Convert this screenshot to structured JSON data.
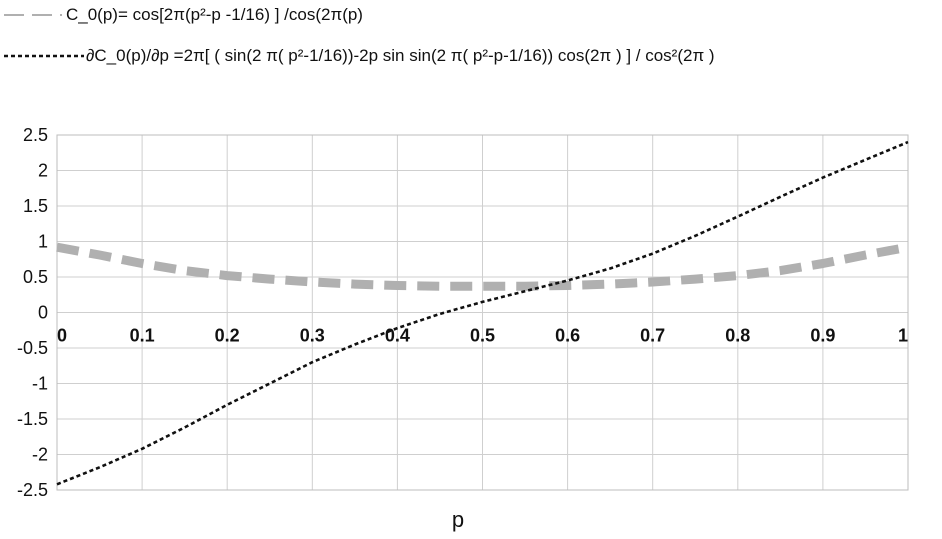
{
  "chart_data": {
    "type": "line",
    "title": "",
    "xlabel": "p",
    "ylabel": "",
    "xlim": [
      0,
      1
    ],
    "ylim": [
      -2.5,
      2.5
    ],
    "x_ticks": [
      "0",
      "0.1",
      "0.2",
      "0.3",
      "0.4",
      "0.5",
      "0.6",
      "0.7",
      "0.8",
      "0.9",
      "1"
    ],
    "y_ticks": [
      "2.5",
      "2",
      "1.5",
      "1",
      "0.5",
      "0",
      "-0.5",
      "-1",
      "-1.5",
      "-2",
      "-2.5"
    ],
    "grid": true,
    "legend_position": "top",
    "series": [
      {
        "name": "C_0(p)= cos[2π(p²-p -1/16) ] /cos(2π(p)",
        "color": "#b0b0b0",
        "style": "thick-dashed",
        "x": [
          0,
          0.05,
          0.1,
          0.15,
          0.2,
          0.25,
          0.3,
          0.35,
          0.4,
          0.45,
          0.5,
          0.55,
          0.6,
          0.65,
          0.7,
          0.75,
          0.8,
          0.85,
          0.9,
          0.95,
          1
        ],
        "y": [
          0.92,
          0.81,
          0.69,
          0.59,
          0.52,
          0.47,
          0.43,
          0.4,
          0.38,
          0.37,
          0.37,
          0.37,
          0.38,
          0.4,
          0.43,
          0.47,
          0.52,
          0.59,
          0.69,
          0.81,
          0.92
        ]
      },
      {
        "name": "∂C_0(p)/∂p =2π[ ( sin(2 π( p²-1/16))-2p sin sin(2 π( p²-p-1/16)) cos(2π )     ] / cos²(2π )",
        "color": "#111111",
        "style": "dotted",
        "x": [
          0,
          0.05,
          0.1,
          0.15,
          0.2,
          0.25,
          0.3,
          0.35,
          0.4,
          0.45,
          0.5,
          0.55,
          0.6,
          0.65,
          0.7,
          0.75,
          0.8,
          0.85,
          0.9,
          0.95,
          1
        ],
        "y": [
          -2.42,
          -2.18,
          -1.92,
          -1.62,
          -1.3,
          -1.0,
          -0.7,
          -0.45,
          -0.22,
          -0.02,
          0.15,
          0.3,
          0.45,
          0.62,
          0.83,
          1.08,
          1.35,
          1.63,
          1.9,
          2.15,
          2.4
        ]
      }
    ]
  }
}
